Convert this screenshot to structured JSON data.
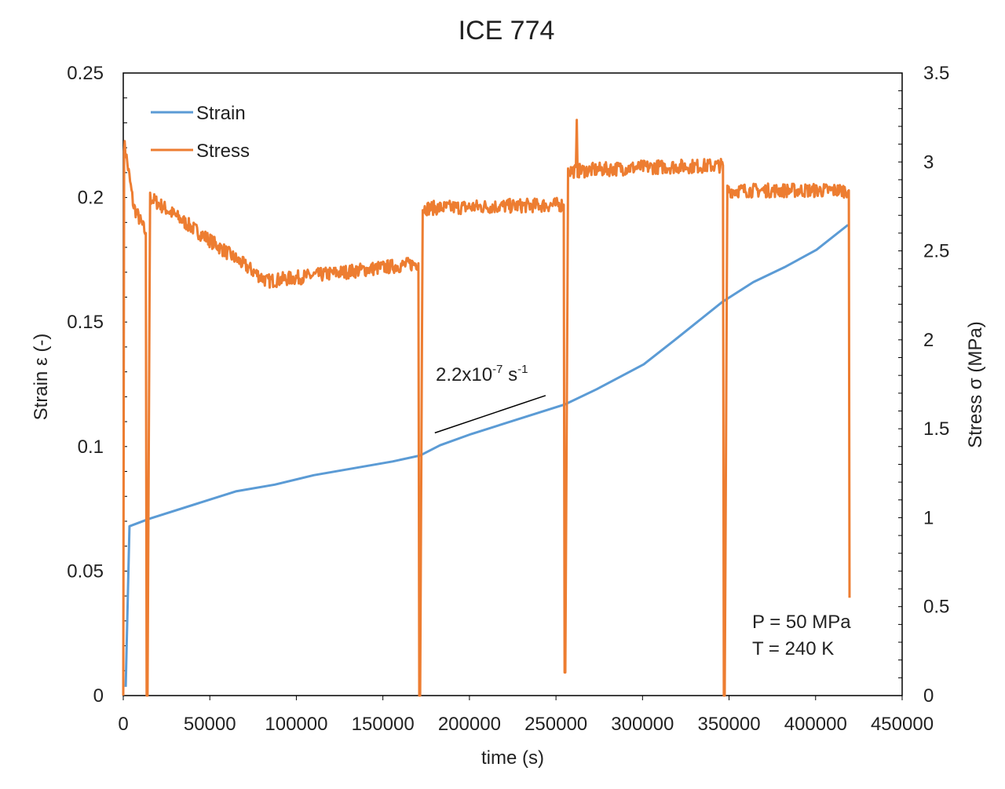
{
  "chart_data": {
    "type": "line",
    "title": "ICE 774",
    "xlabel": "time (s)",
    "ylabel": "Strain ε (-)",
    "y2label": "Stress σ (MPa)",
    "xlim": [
      0,
      450000
    ],
    "ylim": [
      0,
      0.25
    ],
    "y2lim": [
      0,
      3.5
    ],
    "xticks": [
      "0",
      "50000",
      "100000",
      "150000",
      "200000",
      "250000",
      "300000",
      "350000",
      "400000",
      "450000"
    ],
    "yticks": [
      "0",
      "0.05",
      "0.1",
      "0.15",
      "0.2",
      "0.25"
    ],
    "y2ticks": [
      "0",
      "0.5",
      "1",
      "1.5",
      "2",
      "2.5",
      "3",
      "3.5"
    ],
    "grid": false,
    "legend": {
      "position": "top-left",
      "entries": [
        "Strain",
        "Stress"
      ]
    },
    "colors": {
      "Strain": "#5b9bd5",
      "Stress": "#ed7d31"
    },
    "series": [
      {
        "name": "Strain",
        "axis": "left",
        "x": [
          1400,
          3600,
          15000,
          65000,
          87500,
          110000,
          155600,
          171500,
          183000,
          201000,
          255400,
          273500,
          300700,
          319000,
          346000,
          364000,
          382000,
          400500,
          418700
        ],
        "y": [
          0.0035,
          0.068,
          0.071,
          0.082,
          0.0847,
          0.0885,
          0.094,
          0.0964,
          0.1005,
          0.105,
          0.117,
          0.123,
          0.133,
          0.143,
          0.158,
          0.166,
          0.172,
          0.179,
          0.189
        ]
      },
      {
        "name": "Stress",
        "axis": "right",
        "noise_amplitude": 0.04,
        "x": [
          0,
          500,
          1500,
          6000,
          13000,
          13500,
          14000,
          15500,
          83000,
          170500,
          171000,
          171500,
          173000,
          254500,
          255000,
          255400,
          257000,
          261500,
          262000,
          262500,
          300000,
          346500,
          347000,
          347500,
          349000,
          419200,
          419600
        ],
        "y": [
          0,
          3.1,
          3.05,
          2.75,
          2.6,
          0,
          0,
          2.8,
          2.33,
          2.43,
          0,
          0,
          2.74,
          2.76,
          0.13,
          0.13,
          2.95,
          2.95,
          3.2,
          2.95,
          2.97,
          2.98,
          0,
          0,
          2.84,
          2.84,
          0.55
        ]
      }
    ],
    "annotations": [
      {
        "text_base": "2.2x10",
        "text_exp": "-7",
        "text_unit": " s",
        "text_unit_exp": "-1",
        "line_from": [
          180000,
          0.1055
        ],
        "line_to": [
          244000,
          0.1205
        ]
      },
      {
        "text": "P = 50 MPa"
      },
      {
        "text": "T = 240 K"
      }
    ]
  }
}
